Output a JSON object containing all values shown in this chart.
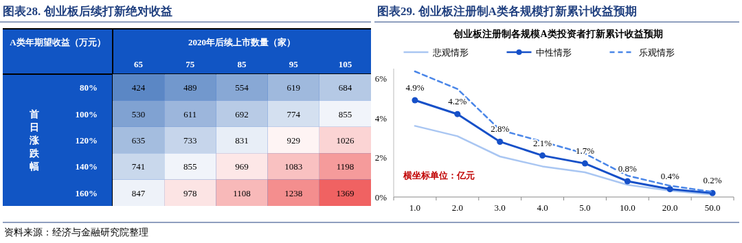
{
  "chart_data": [
    {
      "type": "heatmap",
      "title": "图表28. 创业板后续打新绝对收益",
      "xlabel": "2020年后续上市数量（家）",
      "ylabel": "首日涨跌幅",
      "annotations": [
        "A类年期望收益（万元）",
        "资料来源：经济与金融研究院整理"
      ],
      "categories": [
        "65",
        "75",
        "85",
        "95",
        "105"
      ],
      "y_categories": [
        "80%",
        "100%",
        "120%",
        "140%",
        "160%"
      ],
      "colors": [
        "#5b87c5",
        "#ffffff",
        "#f06262"
      ],
      "cells": [
        [
          424,
          489,
          554,
          619,
          684
        ],
        [
          530,
          611,
          692,
          774,
          855
        ],
        [
          635,
          733,
          831,
          929,
          1026
        ],
        [
          741,
          855,
          969,
          1083,
          1198
        ],
        [
          847,
          978,
          1108,
          1238,
          1369
        ]
      ],
      "data_labels": true
    },
    {
      "type": "line",
      "title": "图表29. 创业板注册制A类各规模打新累计收益预期",
      "subtitle": "创业板注册制各规模A类投资者打新累计收益预期",
      "annotations": [
        "横坐标单位：亿元"
      ],
      "categories": [
        "1.0",
        "2.0",
        "3.0",
        "4.0",
        "5.0",
        "10.0",
        "20.0",
        "50.0"
      ],
      "series": [
        {
          "name": "悲观情形",
          "color": "#a9c6f2",
          "marker": "none",
          "line_style": "solid",
          "values": [
            3.6,
            3.08,
            2.05,
            1.55,
            1.25,
            0.62,
            0.32,
            0.12
          ]
        },
        {
          "name": "中性情形",
          "color": "#1650c8",
          "marker": "circle",
          "line_style": "solid",
          "values": [
            4.9,
            4.2,
            2.8,
            2.1,
            1.7,
            0.8,
            0.4,
            0.2
          ],
          "value_labels": [
            "4.9%",
            "4.2%",
            "2.8%",
            "2.1%",
            "1.7%",
            "0.8%",
            "0.4%",
            "0.2%"
          ]
        },
        {
          "name": "乐观情形",
          "color": "#4a86e8",
          "marker": "none",
          "line_style": "dashed",
          "values": [
            6.36,
            5.47,
            3.4,
            2.8,
            2.2,
            1.08,
            0.57,
            0.26
          ]
        }
      ],
      "ylim": [
        0,
        6.5
      ],
      "yticks": [
        {
          "value": 0,
          "label": "0%"
        },
        {
          "value": 2,
          "label": "2%"
        },
        {
          "value": 4,
          "label": "4%"
        },
        {
          "value": 6,
          "label": "6%"
        }
      ],
      "legend": "top",
      "grid": false
    }
  ]
}
